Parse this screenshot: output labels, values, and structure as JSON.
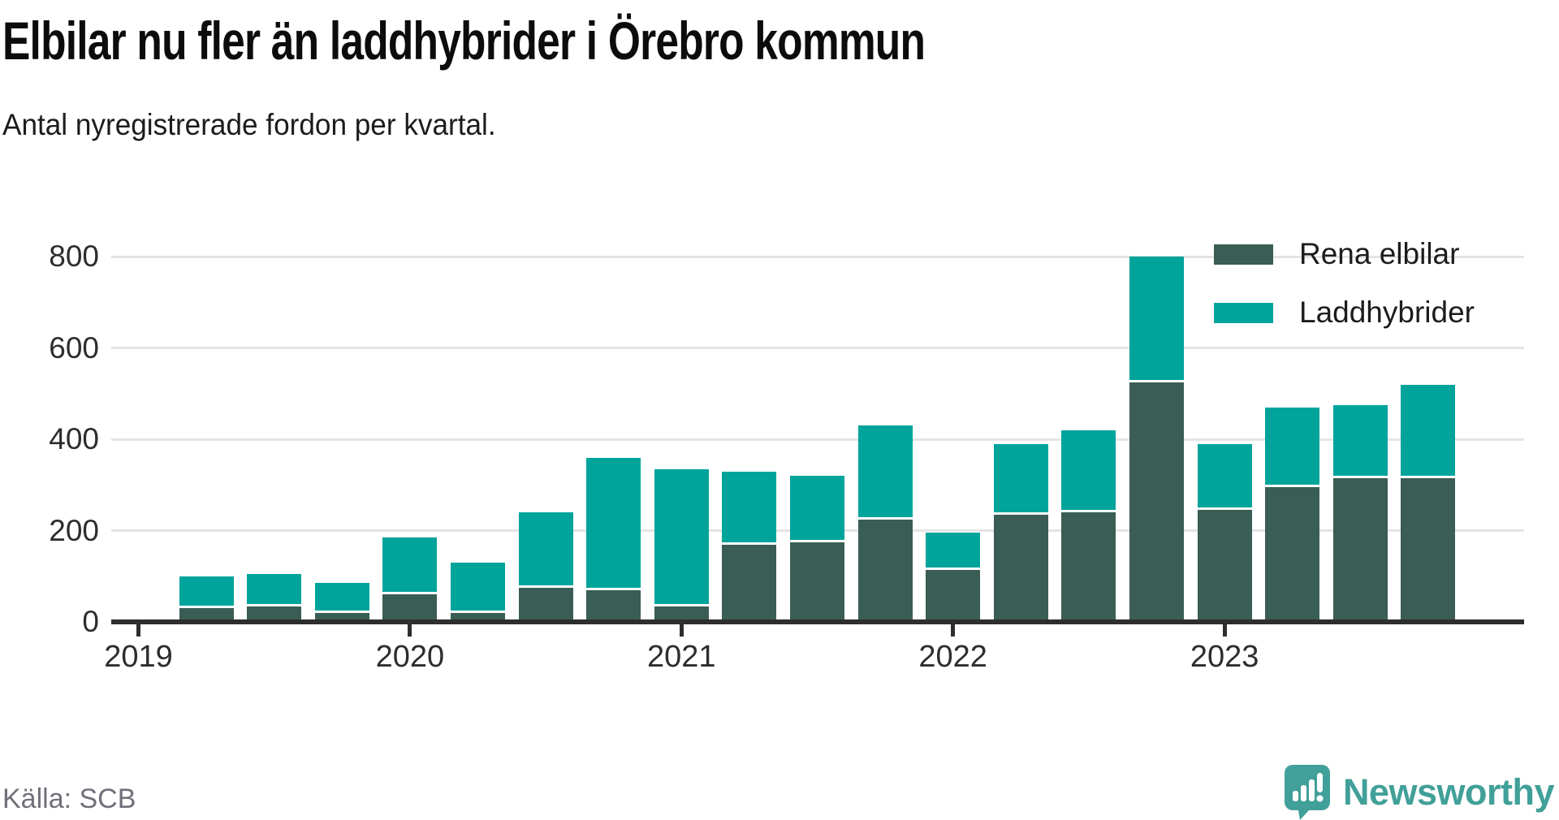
{
  "chart_data": {
    "type": "bar",
    "stacked": true,
    "title": "Elbilar nu fler än laddhybrider i Örebro kommun",
    "subtitle": "Antal nyregistrerade fordon per kvartal.",
    "source": "Källa: SCB",
    "categories": [
      "2019 K2",
      "2019 K3",
      "2019 K4",
      "2020 K1",
      "2020 K2",
      "2020 K3",
      "2020 K4",
      "2021 K1",
      "2021 K2",
      "2021 K3",
      "2021 K4",
      "2022 K1",
      "2022 K2",
      "2022 K3",
      "2022 K4",
      "2023 K1",
      "2023 K2",
      "2023 K3",
      "2023 K4"
    ],
    "series": [
      {
        "name": "Rena elbilar",
        "color": "#3a5d55",
        "values": [
          35,
          40,
          25,
          65,
          25,
          80,
          75,
          40,
          175,
          180,
          230,
          120,
          240,
          245,
          530,
          250,
          300,
          320,
          320
        ]
      },
      {
        "name": "Laddhybrider",
        "color": "#00a49b",
        "values": [
          65,
          65,
          60,
          120,
          105,
          160,
          285,
          295,
          155,
          140,
          200,
          75,
          150,
          175,
          270,
          140,
          170,
          155,
          200
        ]
      }
    ],
    "ylim": [
      0,
      850
    ],
    "yticks": [
      0,
      200,
      400,
      600,
      800
    ],
    "x_year_ticks": [
      "2019",
      "2020",
      "2021",
      "2022",
      "2023"
    ],
    "grid": true,
    "legend_position": "top-right",
    "legend": [
      "Rena elbilar",
      "Laddhybrider"
    ]
  },
  "footer": {
    "source": "Källa: SCB",
    "brand": "Newsworthy"
  },
  "colors": {
    "elbilar_dark": "#3a5d55",
    "laddhybrider_teal": "#00a49b",
    "axis": "#2e2e2e",
    "gridline": "#e4e4e4",
    "brand_teal": "#41a099",
    "source_gray": "#70707a"
  }
}
